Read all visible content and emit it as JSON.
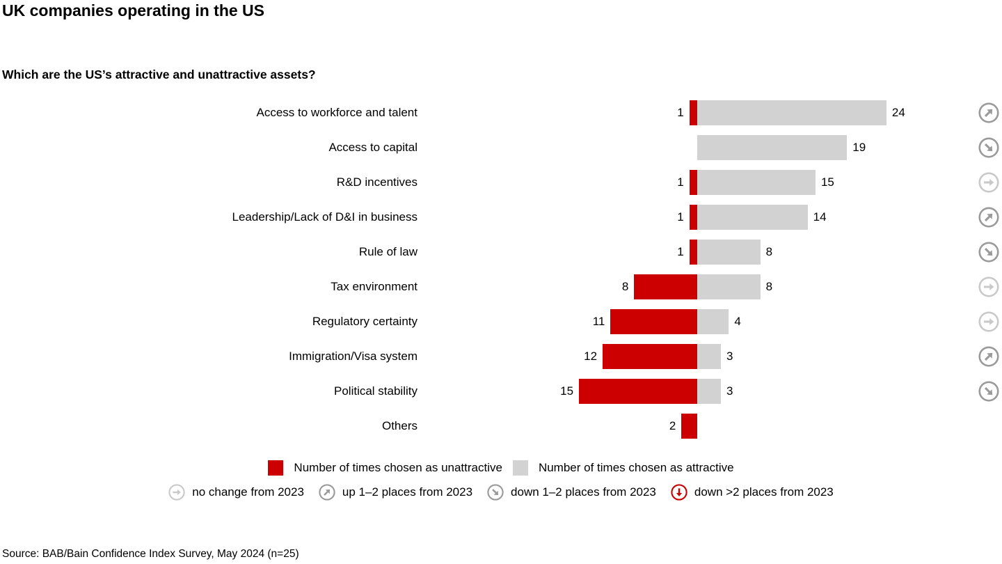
{
  "page": {
    "title": "UK companies operating in the US",
    "subtitle": "Which are the US’s attractive and unattractive assets?",
    "source": "Source: BAB/Bain Confidence Index Survey, May 2024 (n=25)"
  },
  "colors": {
    "unattractive": "#cc0000",
    "attractive": "#d2d2d2",
    "arrow_change": "#9a9a9a",
    "arrow_nochange": "#c9c9c9",
    "arrow_downbig": "#cc0000",
    "text": "#000000"
  },
  "chart_data": {
    "type": "bar",
    "orientation": "horizontal-diverging",
    "title": "Which are the US’s attractive and unattractive assets?",
    "categories": [
      "Access to workforce and talent",
      "Access to capital",
      "R&D incentives",
      "Leadership/Lack of D&I in business",
      "Rule of law",
      "Tax environment",
      "Regulatory certainty",
      "Immigration/Visa system",
      "Political stability",
      "Others"
    ],
    "series": [
      {
        "name": "Number of times chosen as unattractive",
        "color": "#cc0000",
        "direction": "left",
        "values": [
          1,
          0,
          1,
          1,
          1,
          8,
          11,
          12,
          15,
          2
        ]
      },
      {
        "name": "Number of times chosen as attractive",
        "color": "#d2d2d2",
        "direction": "right",
        "values": [
          24,
          19,
          15,
          14,
          8,
          8,
          4,
          3,
          3,
          0
        ]
      }
    ],
    "trend_arrows": [
      "up",
      "down",
      "nochange",
      "up",
      "down",
      "nochange",
      "nochange",
      "up",
      "down",
      null
    ],
    "value_labels_shown": true,
    "xlim": [
      -15,
      24
    ],
    "grid": false,
    "legend_position": "bottom"
  },
  "legend": {
    "series": [
      {
        "label": "Number of times chosen as unattractive",
        "color": "#cc0000"
      },
      {
        "label": "Number of times chosen as attractive",
        "color": "#d2d2d2"
      }
    ],
    "arrows": [
      {
        "label": "no change from 2023",
        "type": "nochange"
      },
      {
        "label": "up 1–2 places from 2023",
        "type": "up"
      },
      {
        "label": "down 1–2 places from 2023",
        "type": "down"
      },
      {
        "label": "down >2 places from 2023",
        "type": "downbig"
      }
    ]
  }
}
